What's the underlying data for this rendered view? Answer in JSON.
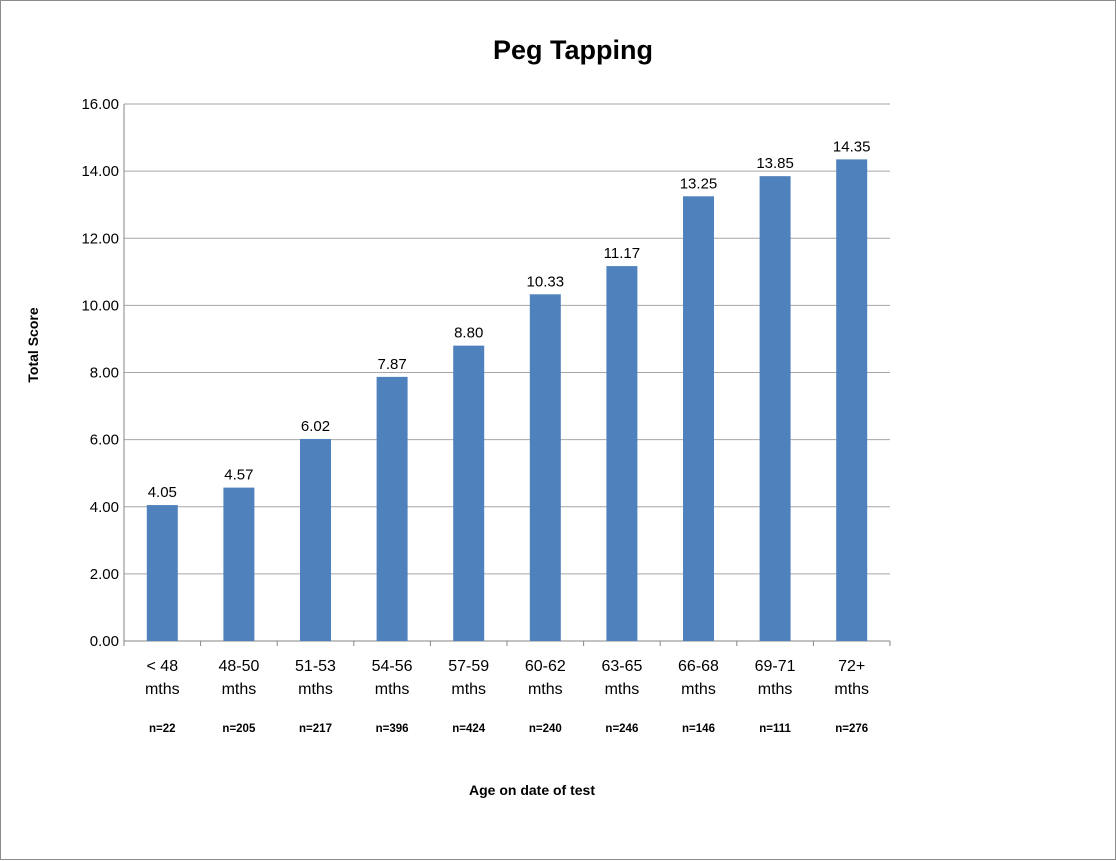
{
  "chart_data": {
    "type": "bar",
    "title": "Peg Tapping",
    "xlabel": "Age on date of test",
    "ylabel": "Total Score",
    "categories": [
      "< 48 mths",
      "48-50 mths",
      "51-53 mths",
      "54-56 mths",
      "57-59 mths",
      "60-62 mths",
      "63-65 mths",
      "66-68 mths",
      "69-71 mths",
      "72+ mths"
    ],
    "category_lines": [
      [
        "< 48",
        "mths"
      ],
      [
        "48-50",
        "mths"
      ],
      [
        "51-53",
        "mths"
      ],
      [
        "54-56",
        "mths"
      ],
      [
        "57-59",
        "mths"
      ],
      [
        "60-62",
        "mths"
      ],
      [
        "63-65",
        "mths"
      ],
      [
        "66-68",
        "mths"
      ],
      [
        "69-71",
        "mths"
      ],
      [
        "72+",
        "mths"
      ]
    ],
    "sample_sizes": [
      "n=22",
      "n=205",
      "n=217",
      "n=396",
      "n=424",
      "n=240",
      "n=246",
      "n=146",
      "n=111",
      "n=276"
    ],
    "values": [
      4.05,
      4.57,
      6.02,
      7.87,
      8.8,
      10.33,
      11.17,
      13.25,
      13.85,
      14.35
    ],
    "data_labels": [
      "4.05",
      "4.57",
      "6.02",
      "7.87",
      "8.80",
      "10.33",
      "11.17",
      "13.25",
      "13.85",
      "14.35"
    ],
    "ylim": [
      0,
      16
    ],
    "yticks": [
      "0.00",
      "2.00",
      "4.00",
      "6.00",
      "8.00",
      "10.00",
      "12.00",
      "14.00",
      "16.00"
    ],
    "grid": true,
    "legend": "none",
    "bar_color": "#4f81bd",
    "grid_color": "#a6a6a6"
  }
}
